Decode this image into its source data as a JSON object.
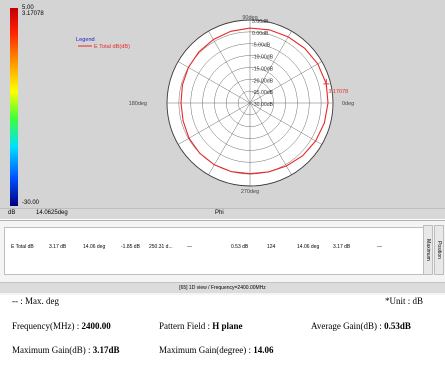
{
  "colorbar": {
    "max": "5.00",
    "max2": "3.17078",
    "min": "-30.00",
    "unit": "dB",
    "angle": "14.0625deg"
  },
  "chart_data": {
    "type": "polar",
    "title": "",
    "legend": {
      "title": "Legend",
      "series_label": "E Total dB(dB)"
    },
    "radial_ticks": [
      "5.00dB",
      "0.00dB",
      "-5.00dB",
      "-10.00dB",
      "-15.00dB",
      "-20.00dB",
      "-25.00dB",
      "-30.00dB"
    ],
    "angle_labels": {
      "top": "90deg",
      "left": "180deg",
      "right": "0deg",
      "bottom": "270deg"
    },
    "rlim": [
      -30,
      5
    ],
    "series": [
      {
        "name": "E Total dB(dB)",
        "color": "#e8282a",
        "points": [
          [
            0,
            2.9
          ],
          [
            14.06,
            3.17
          ],
          [
            30,
            3.0
          ],
          [
            45,
            2.6
          ],
          [
            60,
            2.2
          ],
          [
            75,
            1.9
          ],
          [
            90,
            1.6
          ],
          [
            105,
            1.3
          ],
          [
            120,
            0.9
          ],
          [
            135,
            0.5
          ],
          [
            150,
            0.0
          ],
          [
            165,
            -0.5
          ],
          [
            180,
            -0.9
          ],
          [
            195,
            -0.8
          ],
          [
            210,
            -0.3
          ],
          [
            225,
            0.0
          ],
          [
            240,
            0.1
          ],
          [
            255,
            0.0
          ],
          [
            270,
            -0.2
          ],
          [
            285,
            0.1
          ],
          [
            300,
            0.7
          ],
          [
            315,
            1.4
          ],
          [
            330,
            2.0
          ],
          [
            345,
            2.5
          ],
          [
            360,
            2.9
          ]
        ]
      }
    ],
    "marker": {
      "label": "3.17078",
      "angle": 14.06
    }
  },
  "phi_label": "Phi",
  "table": {
    "row": [
      "E Total dB",
      "3.17 dB",
      "14.06 deg",
      "-1.85 dB",
      "250.31 d...",
      "—",
      "0.53 dB",
      "124",
      "14.06 deg",
      "3.17 dB",
      "—"
    ],
    "tabs": [
      "Maximum",
      "Position"
    ]
  },
  "view_label": "[65] 1D view / Frequency=2400.00MHz",
  "info": {
    "max_deg_label": "-- : Max. deg",
    "unit_label": "*Unit : dB",
    "frequency_label": "Frequency(MHz) :",
    "frequency_value": "2400.00",
    "pattern_label": "Pattern Field :",
    "pattern_value": "H plane",
    "avg_label": "Average Gain(dB) :",
    "avg_value": "0.53dB",
    "max_gain_label": "Maximum Gain(dB) :",
    "max_gain_value": "3.17dB",
    "max_deg_gain_label": "Maximum Gain(degree) :",
    "max_deg_gain_value": "14.06"
  }
}
